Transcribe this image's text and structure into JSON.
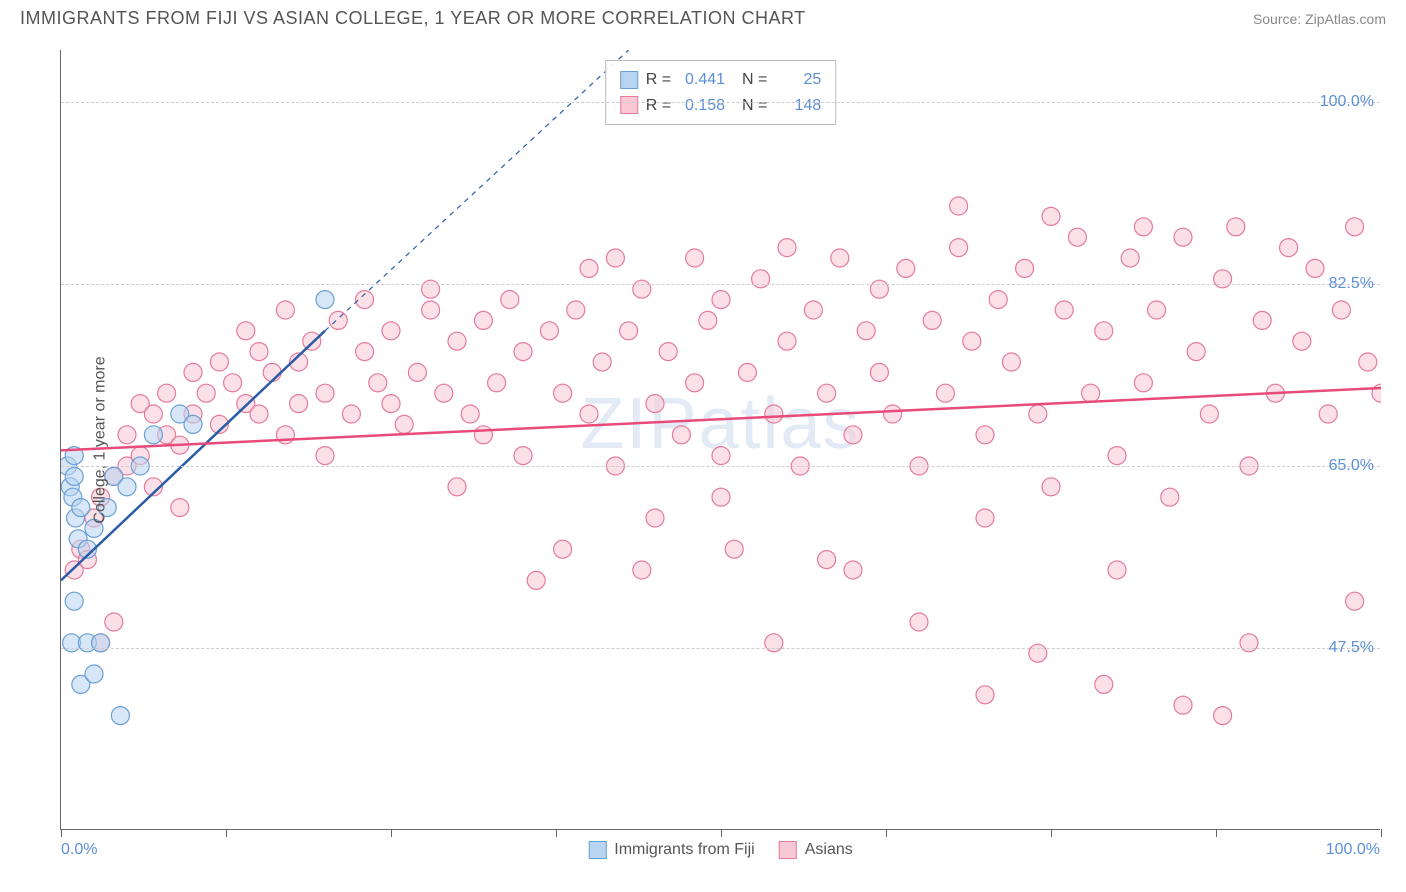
{
  "header": {
    "title": "IMMIGRANTS FROM FIJI VS ASIAN COLLEGE, 1 YEAR OR MORE CORRELATION CHART",
    "source_prefix": "Source: ",
    "source_name": "ZipAtlas.com"
  },
  "watermark": "ZIPatlas",
  "chart": {
    "type": "scatter",
    "xlim": [
      0,
      100
    ],
    "ylim": [
      30,
      105
    ],
    "x_ticks": [
      0,
      12.5,
      25,
      37.5,
      50,
      62.5,
      75,
      87.5,
      100
    ],
    "y_gridlines": [
      47.5,
      65.0,
      82.5,
      100.0
    ],
    "y_tick_labels": [
      "47.5%",
      "65.0%",
      "82.5%",
      "100.0%"
    ],
    "x_left_label": "0.0%",
    "x_right_label": "100.0%",
    "yaxis_title": "College, 1 year or more",
    "background_color": "#ffffff",
    "grid_color": "#cccccc",
    "axis_color": "#666666",
    "series": [
      {
        "name": "Immigrants from Fiji",
        "fill": "#b8d4f0",
        "stroke": "#6a9fd4",
        "line_color": "#2a5ca8",
        "R": "0.441",
        "N": "25",
        "marker_radius": 9,
        "trend": {
          "x1": 0,
          "y1": 54,
          "x2": 20,
          "y2": 78,
          "dash_x2": 43,
          "dash_y2": 105
        },
        "points": [
          [
            0.5,
            65
          ],
          [
            0.7,
            63
          ],
          [
            0.9,
            62
          ],
          [
            1.0,
            64
          ],
          [
            1.1,
            60
          ],
          [
            1.3,
            58
          ],
          [
            1.5,
            61
          ],
          [
            1.0,
            66
          ],
          [
            0.8,
            48
          ],
          [
            2.0,
            48
          ],
          [
            3.0,
            48
          ],
          [
            1.5,
            44
          ],
          [
            2.5,
            45
          ],
          [
            4.5,
            41
          ],
          [
            1.0,
            52
          ],
          [
            2.0,
            57
          ],
          [
            2.5,
            59
          ],
          [
            3.5,
            61
          ],
          [
            4.0,
            64
          ],
          [
            5.0,
            63
          ],
          [
            6.0,
            65
          ],
          [
            7.0,
            68
          ],
          [
            9.0,
            70
          ],
          [
            10.0,
            69
          ],
          [
            20.0,
            81
          ]
        ]
      },
      {
        "name": "Asians",
        "fill": "#f8c8d4",
        "stroke": "#e67a9a",
        "line_color": "#e84a7a",
        "R": "0.158",
        "N": "148",
        "marker_radius": 9,
        "trend": {
          "x1": 0,
          "y1": 66.5,
          "x2": 100,
          "y2": 72.5
        },
        "points": [
          [
            1,
            55
          ],
          [
            1.5,
            57
          ],
          [
            2,
            56
          ],
          [
            2.5,
            60
          ],
          [
            3,
            62
          ],
          [
            3,
            48
          ],
          [
            4,
            50
          ],
          [
            4,
            64
          ],
          [
            5,
            65
          ],
          [
            5,
            68
          ],
          [
            6,
            66
          ],
          [
            6,
            71
          ],
          [
            7,
            70
          ],
          [
            7,
            63
          ],
          [
            8,
            68
          ],
          [
            8,
            72
          ],
          [
            9,
            67
          ],
          [
            9,
            61
          ],
          [
            10,
            70
          ],
          [
            10,
            74
          ],
          [
            11,
            72
          ],
          [
            12,
            69
          ],
          [
            12,
            75
          ],
          [
            13,
            73
          ],
          [
            14,
            71
          ],
          [
            14,
            78
          ],
          [
            15,
            70
          ],
          [
            15,
            76
          ],
          [
            16,
            74
          ],
          [
            17,
            68
          ],
          [
            17,
            80
          ],
          [
            18,
            75
          ],
          [
            18,
            71
          ],
          [
            19,
            77
          ],
          [
            20,
            72
          ],
          [
            20,
            66
          ],
          [
            21,
            79
          ],
          [
            22,
            70
          ],
          [
            23,
            76
          ],
          [
            23,
            81
          ],
          [
            24,
            73
          ],
          [
            25,
            78
          ],
          [
            25,
            71
          ],
          [
            26,
            69
          ],
          [
            27,
            74
          ],
          [
            28,
            80
          ],
          [
            28,
            82
          ],
          [
            29,
            72
          ],
          [
            30,
            77
          ],
          [
            31,
            70
          ],
          [
            32,
            79
          ],
          [
            32,
            68
          ],
          [
            33,
            73
          ],
          [
            34,
            81
          ],
          [
            35,
            66
          ],
          [
            35,
            76
          ],
          [
            36,
            54
          ],
          [
            37,
            78
          ],
          [
            38,
            72
          ],
          [
            38,
            57
          ],
          [
            39,
            80
          ],
          [
            40,
            70
          ],
          [
            40,
            84
          ],
          [
            41,
            75
          ],
          [
            42,
            65
          ],
          [
            43,
            78
          ],
          [
            44,
            82
          ],
          [
            44,
            55
          ],
          [
            45,
            71
          ],
          [
            46,
            76
          ],
          [
            47,
            68
          ],
          [
            48,
            85
          ],
          [
            48,
            73
          ],
          [
            49,
            79
          ],
          [
            50,
            66
          ],
          [
            50,
            81
          ],
          [
            51,
            57
          ],
          [
            52,
            74
          ],
          [
            53,
            83
          ],
          [
            54,
            70
          ],
          [
            54,
            48
          ],
          [
            55,
            77
          ],
          [
            56,
            65
          ],
          [
            57,
            80
          ],
          [
            58,
            72
          ],
          [
            58,
            56
          ],
          [
            59,
            85
          ],
          [
            60,
            68
          ],
          [
            61,
            78
          ],
          [
            62,
            74
          ],
          [
            62,
            82
          ],
          [
            63,
            70
          ],
          [
            64,
            84
          ],
          [
            65,
            65
          ],
          [
            65,
            50
          ],
          [
            66,
            79
          ],
          [
            67,
            72
          ],
          [
            68,
            86
          ],
          [
            69,
            77
          ],
          [
            70,
            68
          ],
          [
            70,
            43
          ],
          [
            71,
            81
          ],
          [
            72,
            75
          ],
          [
            73,
            84
          ],
          [
            74,
            47
          ],
          [
            74,
            70
          ],
          [
            75,
            63
          ],
          [
            76,
            80
          ],
          [
            77,
            87
          ],
          [
            78,
            72
          ],
          [
            79,
            44
          ],
          [
            79,
            78
          ],
          [
            80,
            66
          ],
          [
            81,
            85
          ],
          [
            82,
            73
          ],
          [
            83,
            80
          ],
          [
            84,
            62
          ],
          [
            85,
            42
          ],
          [
            85,
            87
          ],
          [
            86,
            76
          ],
          [
            87,
            70
          ],
          [
            88,
            83
          ],
          [
            89,
            88
          ],
          [
            90,
            65
          ],
          [
            90,
            48
          ],
          [
            91,
            79
          ],
          [
            92,
            72
          ],
          [
            93,
            86
          ],
          [
            94,
            77
          ],
          [
            95,
            84
          ],
          [
            96,
            70
          ],
          [
            97,
            80
          ],
          [
            98,
            52
          ],
          [
            98,
            88
          ],
          [
            99,
            75
          ],
          [
            100,
            72
          ],
          [
            60,
            55
          ],
          [
            45,
            60
          ],
          [
            70,
            60
          ],
          [
            80,
            55
          ],
          [
            50,
            62
          ],
          [
            30,
            63
          ],
          [
            42,
            85
          ],
          [
            55,
            86
          ],
          [
            68,
            90
          ],
          [
            75,
            89
          ],
          [
            82,
            88
          ],
          [
            88,
            41
          ]
        ]
      }
    ]
  },
  "bottom_legend": [
    {
      "label": "Immigrants from Fiji",
      "fill": "#b8d4f0",
      "stroke": "#6a9fd4"
    },
    {
      "label": "Asians",
      "fill": "#f8c8d4",
      "stroke": "#e67a9a"
    }
  ]
}
